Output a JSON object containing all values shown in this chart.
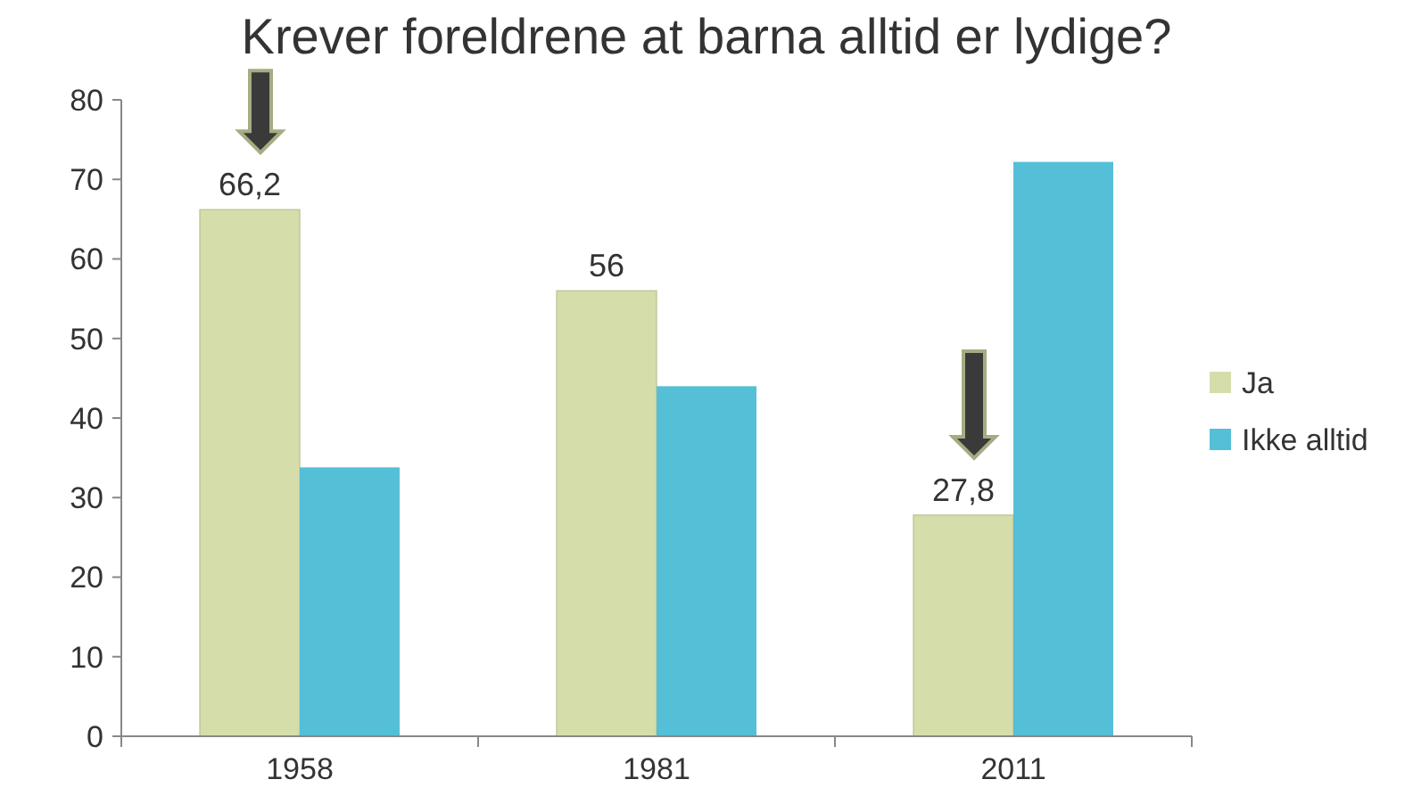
{
  "chart_data": {
    "type": "bar",
    "title": "Krever foreldrene at barna alltid er lydige?",
    "categories": [
      "1958",
      "1981",
      "2011"
    ],
    "series": [
      {
        "name": "Ja",
        "color": "#d5deab",
        "values": [
          66.2,
          56,
          27.8
        ],
        "value_labels": [
          "66,2",
          "56",
          "27,8"
        ]
      },
      {
        "name": "Ikke alltid",
        "color": "#55bfd8",
        "values": [
          33.8,
          44,
          72.2
        ]
      }
    ],
    "ylim": [
      0,
      80
    ],
    "yticks": [
      0,
      10,
      20,
      30,
      40,
      50,
      60,
      70,
      80
    ],
    "grid": false,
    "legend": "right"
  }
}
